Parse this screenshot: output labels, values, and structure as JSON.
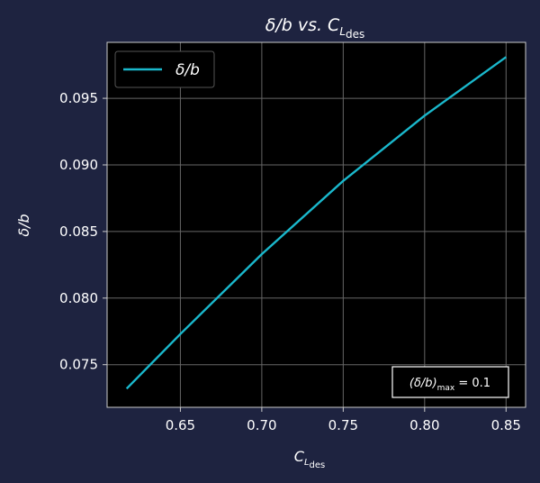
{
  "chart_data": {
    "type": "line",
    "title": {
      "main": "δ/b vs. C",
      "sub": "L",
      "subsub": "des"
    },
    "xlabel": {
      "main": "C",
      "sub": "L",
      "subsub": "des"
    },
    "ylabel": "δ/b",
    "xlim": [
      0.605,
      0.862
    ],
    "ylim": [
      0.0718,
      0.0992
    ],
    "xticks": [
      0.65,
      0.7,
      0.75,
      0.8,
      0.85
    ],
    "xtick_labels": [
      "0.65",
      "0.70",
      "0.75",
      "0.80",
      "0.85"
    ],
    "yticks": [
      0.075,
      0.08,
      0.085,
      0.09,
      0.095
    ],
    "ytick_labels": [
      "0.075",
      "0.080",
      "0.085",
      "0.090",
      "0.095"
    ],
    "grid": true,
    "legend_position": "top-left",
    "series": [
      {
        "name": "δ/b",
        "color": "#1ab8cc",
        "x": [
          0.617,
          0.65,
          0.7,
          0.75,
          0.8,
          0.85
        ],
        "y": [
          0.0732,
          0.0773,
          0.0833,
          0.0888,
          0.0937,
          0.0981
        ]
      }
    ],
    "annotation": {
      "text_main": "(δ/b)",
      "text_sub": "max",
      "text_rest": " = 0.1",
      "position": "bottom-right"
    }
  },
  "colors": {
    "background": "#1e2340",
    "plot_background": "#000000",
    "grid": "#666666",
    "spine": "#cccccc"
  }
}
